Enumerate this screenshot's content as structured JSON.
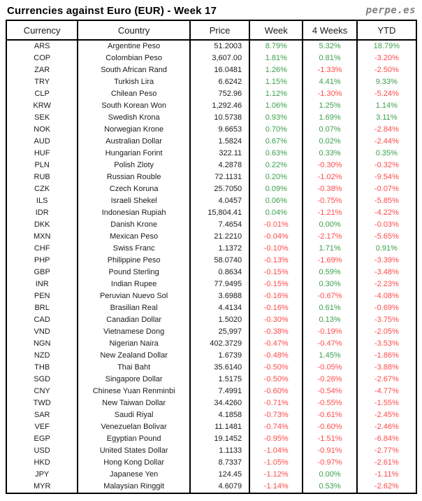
{
  "header": {
    "title": "Currencies against Euro (EUR) - Week 17",
    "logo": "perpe.es"
  },
  "colors": {
    "positive": "#3ca04c",
    "negative": "#ff4a4a",
    "text": "#1a1a1a",
    "border": "#000000",
    "logo_gray": "#808080"
  },
  "chart_data": {
    "type": "table",
    "title": "Currencies against Euro (EUR) - Week 17",
    "columns": [
      "Currency",
      "Country",
      "Price",
      "Week",
      "4 Weeks",
      "YTD"
    ],
    "rows": [
      [
        "ARS",
        "Argentine Peso",
        "51.2003",
        "8.79%",
        "5.32%",
        "18.79%"
      ],
      [
        "COP",
        "Colombian Peso",
        "3,607.00",
        "1.81%",
        "0.81%",
        "-3.20%"
      ],
      [
        "ZAR",
        "South African Rand",
        "16.0481",
        "1.26%",
        "-1.33%",
        "-2.50%"
      ],
      [
        "TRY",
        "Turkish Lira",
        "6.6242",
        "1.15%",
        "4.41%",
        "9.33%"
      ],
      [
        "CLP",
        "Chilean Peso",
        "752.96",
        "1.12%",
        "-1.30%",
        "-5.24%"
      ],
      [
        "KRW",
        "South Korean Won",
        "1,292.46",
        "1.06%",
        "1.25%",
        "1.14%"
      ],
      [
        "SEK",
        "Swedish Krona",
        "10.5738",
        "0.93%",
        "1.69%",
        "3.11%"
      ],
      [
        "NOK",
        "Norwegian Krone",
        "9.6653",
        "0.70%",
        "0.07%",
        "-2.84%"
      ],
      [
        "AUD",
        "Australian Dollar",
        "1.5824",
        "0.67%",
        "0.02%",
        "-2.44%"
      ],
      [
        "HUF",
        "Hungarian Forint",
        "322.11",
        "0.63%",
        "0.33%",
        "0.35%"
      ],
      [
        "PLN",
        "Polish Zloty",
        "4.2878",
        "0.22%",
        "-0.30%",
        "-0.32%"
      ],
      [
        "RUB",
        "Russian Rouble",
        "72.1131",
        "0.20%",
        "-1.02%",
        "-9.54%"
      ],
      [
        "CZK",
        "Czech Koruna",
        "25.7050",
        "0.09%",
        "-0.38%",
        "-0.07%"
      ],
      [
        "ILS",
        "Israeli Shekel",
        "4.0457",
        "0.06%",
        "-0.75%",
        "-5.85%"
      ],
      [
        "IDR",
        "Indonesian Rupiah",
        "15,804.41",
        "0.04%",
        "-1.21%",
        "-4.22%"
      ],
      [
        "DKK",
        "Danish Krone",
        "7.4654",
        "-0.01%",
        "0.00%",
        "-0.03%"
      ],
      [
        "MXN",
        "Mexican Peso",
        "21.2210",
        "-0.04%",
        "-2.17%",
        "-5.65%"
      ],
      [
        "CHF",
        "Swiss Franc",
        "1.1372",
        "-0.10%",
        "1.71%",
        "0.91%"
      ],
      [
        "PHP",
        "Philippine Peso",
        "58.0740",
        "-0.13%",
        "-1.69%",
        "-3.39%"
      ],
      [
        "GBP",
        "Pound Sterling",
        "0.8634",
        "-0.15%",
        "0.59%",
        "-3.48%"
      ],
      [
        "INR",
        "Indian Rupee",
        "77.9495",
        "-0.15%",
        "0.30%",
        "-2.23%"
      ],
      [
        "PEN",
        "Peruvian Nuevo Sol",
        "3.6988",
        "-0.16%",
        "-0.67%",
        "-4.08%"
      ],
      [
        "BRL",
        "Brasilian Real",
        "4.4134",
        "-0.16%",
        "0.61%",
        "-0.69%"
      ],
      [
        "CAD",
        "Canadian Dollar",
        "1.5020",
        "-0.30%",
        "0.13%",
        "-3.75%"
      ],
      [
        "VND",
        "Vietnamese Dong",
        "25,997",
        "-0.38%",
        "-0.19%",
        "-2.05%"
      ],
      [
        "NGN",
        "Nigerian Naira",
        "402.3729",
        "-0.47%",
        "-0.47%",
        "-3.53%"
      ],
      [
        "NZD",
        "New Zealand Dollar",
        "1.6739",
        "-0.48%",
        "1.45%",
        "-1.86%"
      ],
      [
        "THB",
        "Thai Baht",
        "35.6140",
        "-0.50%",
        "-0.05%",
        "-3.88%"
      ],
      [
        "SGD",
        "Singapore Dollar",
        "1.5175",
        "-0.50%",
        "-0.26%",
        "-2.67%"
      ],
      [
        "CNY",
        "Chinese Yuan Renminbi",
        "7.4991",
        "-0.60%",
        "-0.54%",
        "-4.77%"
      ],
      [
        "TWD",
        "New Taiwan Dollar",
        "34.4260",
        "-0.71%",
        "-0.55%",
        "-1.55%"
      ],
      [
        "SAR",
        "Saudi Riyal",
        "4.1858",
        "-0.73%",
        "-0.61%",
        "-2.45%"
      ],
      [
        "VEF",
        "Venezuelan Bolivar",
        "11.1481",
        "-0.74%",
        "-0.60%",
        "-2.46%"
      ],
      [
        "EGP",
        "Egyptian Pound",
        "19.1452",
        "-0.95%",
        "-1.51%",
        "-6.84%"
      ],
      [
        "USD",
        "United States Dollar",
        "1.1133",
        "-1.04%",
        "-0.91%",
        "-2.77%"
      ],
      [
        "HKD",
        "Hong Kong Dollar",
        "8.7337",
        "-1.05%",
        "-0.97%",
        "-2.61%"
      ],
      [
        "JPY",
        "Japanese Yen",
        "124.45",
        "-1.12%",
        "0.00%",
        "-1.11%"
      ],
      [
        "MYR",
        "Malaysian Ringgit",
        "4.6079",
        "-1.14%",
        "0.53%",
        "-2.62%"
      ]
    ]
  }
}
